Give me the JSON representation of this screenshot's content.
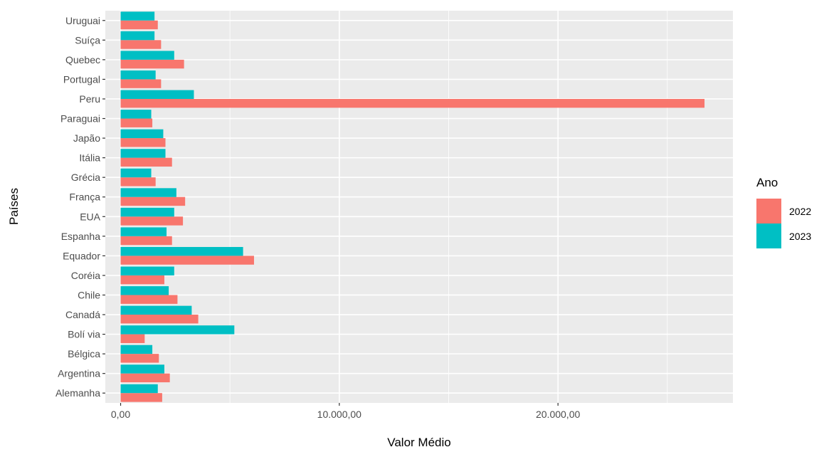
{
  "chart_data": {
    "type": "bar",
    "orientation": "horizontal",
    "categories": [
      "Alemanha",
      "Argentina",
      "Bélgica",
      "Bolí via",
      "Canadá",
      "Chile",
      "Coréia",
      "Equador",
      "Espanha",
      "EUA",
      "França",
      "Grécia",
      "Itália",
      "Japão",
      "Paraguai",
      "Peru",
      "Portugal",
      "Quebec",
      "Suíça",
      "Uruguai"
    ],
    "series": [
      {
        "name": "2022",
        "color": "#F8766D",
        "values": [
          1900,
          2250,
          1750,
          1100,
          3550,
          2600,
          2000,
          6100,
          2350,
          2850,
          2950,
          1600,
          2350,
          2050,
          1450,
          26700,
          1850,
          2900,
          1850,
          1700
        ]
      },
      {
        "name": "2023",
        "color": "#00BFC4",
        "values": [
          1700,
          2000,
          1450,
          5200,
          3250,
          2200,
          2450,
          5600,
          2100,
          2450,
          2550,
          1400,
          2050,
          1950,
          1400,
          3350,
          1600,
          2450,
          1550,
          1550
        ]
      }
    ],
    "xlabel": "Valor Médio",
    "ylabel": "Países",
    "xlim": [
      -700,
      28000
    ],
    "xticks": [
      0,
      10000,
      20000
    ],
    "xtick_labels": [
      "0,00",
      "10.000,00",
      "20.000,00"
    ],
    "grid": true,
    "legend": {
      "title": "Ano",
      "position": "right"
    }
  }
}
